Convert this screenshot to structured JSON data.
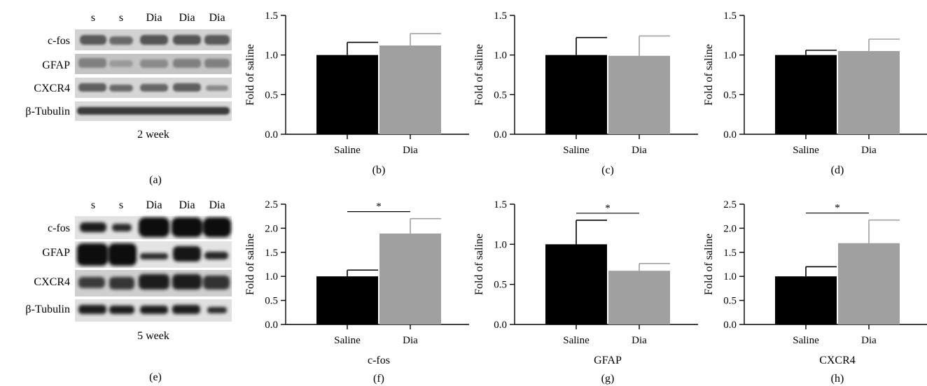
{
  "colors": {
    "saline": "#000000",
    "dia": "#a0a0a0"
  },
  "blots": [
    {
      "letter": "(a)",
      "caption": "2 week",
      "lanes": [
        "s",
        "s",
        "Dia",
        "Dia",
        "Dia"
      ],
      "rows": [
        "c-fos",
        "GFAP",
        "CXCR4",
        "β-Tubulin"
      ]
    },
    {
      "letter": "(e)",
      "caption": "5 week",
      "lanes": [
        "s",
        "s",
        "Dia",
        "Dia",
        "Dia"
      ],
      "rows": [
        "c-fos",
        "GFAP",
        "CXCR4",
        "β-Tubulin"
      ]
    }
  ],
  "chart_data": [
    {
      "type": "bar",
      "letter": "(b)",
      "title": "",
      "xlabel": "",
      "ylabel": "Fold of saline",
      "categories": [
        "Saline",
        "Dia"
      ],
      "values": [
        1.0,
        1.12
      ],
      "errors": [
        0.16,
        0.15
      ],
      "ylim": [
        0,
        1.5
      ],
      "yticks": [
        "0.0",
        "0.5",
        "1.0",
        "1.5"
      ],
      "significance": ""
    },
    {
      "type": "bar",
      "letter": "(c)",
      "title": "",
      "xlabel": "",
      "ylabel": "Fold of saline",
      "categories": [
        "Saline",
        "Dia"
      ],
      "values": [
        1.0,
        0.99
      ],
      "errors": [
        0.22,
        0.25
      ],
      "ylim": [
        0,
        1.5
      ],
      "yticks": [
        "0.0",
        "0.5",
        "1.0",
        "1.5"
      ],
      "significance": ""
    },
    {
      "type": "bar",
      "letter": "(d)",
      "title": "",
      "xlabel": "",
      "ylabel": "Fold of saline",
      "categories": [
        "Saline",
        "Dia"
      ],
      "values": [
        1.0,
        1.05
      ],
      "errors": [
        0.06,
        0.15
      ],
      "ylim": [
        0,
        1.5
      ],
      "yticks": [
        "0.0",
        "0.5",
        "1.0",
        "1.5"
      ],
      "significance": ""
    },
    {
      "type": "bar",
      "letter": "(f)",
      "title": "",
      "xlabel": "c-fos",
      "ylabel": "Fold of saline",
      "categories": [
        "Saline",
        "Dia"
      ],
      "values": [
        1.0,
        1.89
      ],
      "errors": [
        0.13,
        0.31
      ],
      "ylim": [
        0,
        2.5
      ],
      "yticks": [
        "0.0",
        "0.5",
        "1.0",
        "1.5",
        "2.0",
        "2.5"
      ],
      "significance": "*"
    },
    {
      "type": "bar",
      "letter": "(g)",
      "title": "",
      "xlabel": "GFAP",
      "ylabel": "Fold of saline",
      "categories": [
        "Saline",
        "Dia"
      ],
      "values": [
        1.0,
        0.67
      ],
      "errors": [
        0.3,
        0.09
      ],
      "ylim": [
        0,
        1.5
      ],
      "yticks": [
        "0.0",
        "0.5",
        "1.0",
        "1.5"
      ],
      "significance": "*"
    },
    {
      "type": "bar",
      "letter": "(h)",
      "title": "",
      "xlabel": "CXCR4",
      "ylabel": "Fold of saline",
      "categories": [
        "Saline",
        "Dia"
      ],
      "values": [
        1.0,
        1.69
      ],
      "errors": [
        0.2,
        0.48
      ],
      "ylim": [
        0,
        2.5
      ],
      "yticks": [
        "0.0",
        "0.5",
        "1.0",
        "1.5",
        "2.0",
        "2.5"
      ],
      "significance": "*"
    }
  ]
}
